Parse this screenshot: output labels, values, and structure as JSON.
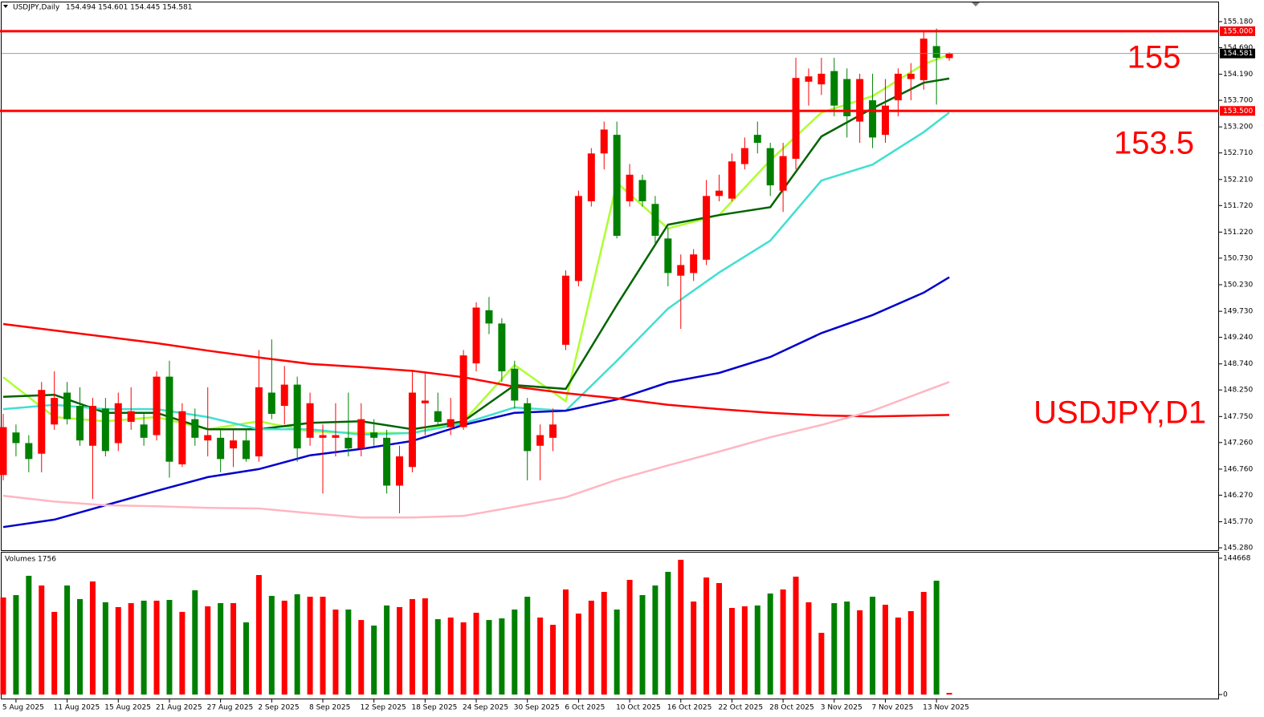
{
  "header": {
    "symbol": "USDJPY,Daily",
    "ohlc": "154.494 154.601 154.445 154.581"
  },
  "chart_data": [
    {
      "type": "candlestick",
      "categories": [
        null,
        "5 Aug 2025",
        null,
        null,
        null,
        "11 Aug 2025",
        null,
        null,
        null,
        "15 Aug 2025",
        null,
        null,
        null,
        "21 Aug 2025",
        null,
        null,
        null,
        "27 Aug 2025",
        null,
        null,
        null,
        "2 Sep 2025",
        null,
        null,
        null,
        "8 Sep 2025",
        null,
        null,
        null,
        "12 Sep 2025",
        null,
        null,
        null,
        "18 Sep 2025",
        null,
        null,
        null,
        "24 Sep 2025",
        null,
        null,
        null,
        "30 Sep 2025",
        null,
        null,
        null,
        "6 Oct 2025",
        null,
        null,
        null,
        "10 Oct 2025",
        null,
        null,
        null,
        "16 Oct 2025",
        null,
        null,
        null,
        "22 Oct 2025",
        null,
        null,
        null,
        "28 Oct 2025",
        null,
        null,
        null,
        "3 Nov 2025",
        null,
        null,
        null,
        "7 Nov 2025",
        null,
        null,
        null,
        "13 Nov 2025",
        null
      ],
      "open": [
        146.65,
        147.45,
        147.25,
        147.05,
        147.6,
        148.2,
        147.95,
        147.2,
        147.9,
        147.25,
        147.65,
        147.6,
        147.4,
        148.5,
        146.85,
        147.7,
        147.3,
        147.35,
        147.15,
        147.3,
        147.0,
        148.2,
        147.95,
        148.35,
        147.35,
        147.35,
        147.35,
        147.35,
        147.15,
        147.45,
        147.35,
        146.45,
        146.8,
        148.0,
        147.85,
        147.55,
        147.55,
        148.75,
        149.75,
        149.5,
        148.65,
        148.0,
        147.2,
        147.35,
        149.1,
        150.3,
        151.8,
        152.7,
        153.05,
        151.8,
        152.2,
        151.75,
        151.1,
        150.4,
        150.45,
        150.7,
        151.9,
        151.85,
        152.5,
        153.05,
        152.8,
        152.0,
        152.6,
        154.05,
        154.0,
        154.25,
        154.1,
        153.3,
        153.7,
        153.05,
        153.7,
        154.1,
        154.08,
        154.72,
        154.494
      ],
      "high": [
        147.8,
        147.6,
        147.4,
        148.4,
        148.6,
        148.4,
        148.3,
        148.1,
        148.1,
        148.2,
        148.3,
        147.8,
        148.6,
        148.8,
        148.0,
        147.9,
        148.3,
        147.5,
        147.5,
        147.5,
        149.0,
        149.2,
        148.7,
        148.5,
        148.2,
        147.6,
        148.0,
        148.2,
        148.0,
        147.7,
        147.5,
        147.2,
        148.6,
        148.6,
        148.2,
        148.1,
        149.0,
        149.9,
        150.0,
        149.6,
        148.8,
        148.1,
        147.6,
        147.9,
        150.5,
        152.0,
        152.8,
        153.3,
        153.3,
        152.5,
        152.3,
        151.9,
        151.3,
        150.8,
        150.9,
        152.2,
        152.3,
        152.7,
        153.0,
        153.3,
        152.9,
        152.9,
        154.5,
        154.3,
        154.5,
        154.5,
        154.3,
        154.2,
        154.2,
        154.1,
        154.3,
        154.4,
        155.0,
        155.05,
        154.601
      ],
      "low": [
        146.55,
        147.0,
        146.7,
        146.7,
        147.5,
        147.6,
        147.2,
        146.2,
        147.0,
        147.1,
        147.5,
        147.2,
        147.3,
        146.6,
        146.8,
        147.2,
        147.0,
        146.7,
        146.8,
        146.9,
        146.9,
        147.7,
        147.6,
        146.9,
        147.2,
        146.3,
        147.0,
        147.0,
        147.0,
        147.2,
        146.3,
        145.93,
        146.7,
        147.4,
        147.6,
        147.4,
        147.5,
        148.6,
        149.3,
        148.4,
        147.9,
        146.55,
        146.55,
        147.1,
        149.0,
        150.2,
        151.7,
        152.4,
        151.1,
        151.7,
        151.7,
        151.0,
        150.2,
        149.4,
        150.3,
        150.6,
        151.8,
        151.8,
        152.4,
        152.7,
        151.9,
        151.6,
        152.4,
        153.6,
        153.8,
        153.4,
        153.0,
        152.9,
        152.8,
        152.9,
        153.4,
        153.7,
        153.9,
        153.62,
        154.445
      ],
      "close": [
        147.55,
        147.25,
        146.95,
        148.25,
        148.1,
        147.7,
        147.3,
        147.95,
        147.1,
        148.0,
        147.85,
        147.35,
        148.5,
        146.9,
        147.85,
        147.35,
        147.4,
        146.95,
        147.3,
        146.95,
        148.3,
        147.8,
        148.35,
        147.15,
        148.0,
        147.4,
        147.4,
        147.15,
        147.7,
        147.35,
        146.45,
        147.0,
        148.2,
        148.05,
        147.65,
        147.7,
        148.9,
        149.8,
        149.5,
        148.6,
        148.05,
        147.1,
        147.4,
        147.6,
        150.4,
        151.9,
        152.7,
        153.15,
        151.15,
        152.3,
        151.8,
        151.15,
        150.45,
        150.6,
        150.8,
        151.9,
        152.0,
        152.55,
        152.8,
        152.9,
        152.1,
        152.65,
        154.12,
        154.15,
        154.2,
        153.6,
        153.4,
        154.1,
        153.0,
        153.6,
        154.2,
        154.2,
        154.86,
        154.5,
        154.581
      ],
      "up_color": "#ff0000",
      "down_color": "#008000",
      "ylim": [
        145.235,
        155.557
      ],
      "yticks": [
        {
          "value": 155.18,
          "label": "155.180"
        },
        {
          "value": 154.69,
          "label": "154.690"
        },
        {
          "value": 154.19,
          "label": "154.190"
        },
        {
          "value": 153.7,
          "label": "153.700"
        },
        {
          "value": 153.2,
          "label": "153.200"
        },
        {
          "value": 152.71,
          "label": "152.710"
        },
        {
          "value": 152.21,
          "label": "152.210"
        },
        {
          "value": 151.72,
          "label": "151.720"
        },
        {
          "value": 151.22,
          "label": "151.220"
        },
        {
          "value": 150.73,
          "label": "150.730"
        },
        {
          "value": 150.23,
          "label": "150.230"
        },
        {
          "value": 149.73,
          "label": "149.730"
        },
        {
          "value": 149.24,
          "label": "149.240"
        },
        {
          "value": 148.74,
          "label": "148.740"
        },
        {
          "value": 148.25,
          "label": "148.250"
        },
        {
          "value": 147.75,
          "label": "147.750"
        },
        {
          "value": 147.26,
          "label": "147.260"
        },
        {
          "value": 146.76,
          "label": "146.760"
        },
        {
          "value": 146.27,
          "label": "146.270"
        },
        {
          "value": 145.77,
          "label": "145.770"
        },
        {
          "value": 145.28,
          "label": "145.280"
        }
      ],
      "hlines": [
        {
          "value": 155,
          "label": "155.000",
          "color": "#ff0000"
        },
        {
          "value": 153.5,
          "label": "153.500",
          "color": "#ff0000"
        }
      ],
      "current_price": 154.581,
      "series": [
        {
          "color": "#adff2f",
          "x": [
            0,
            4,
            8,
            12,
            16,
            20,
            24,
            28,
            32,
            36,
            40,
            44,
            48,
            52,
            56,
            60,
            64,
            68,
            72,
            74
          ],
          "values": [
            148.49,
            147.74,
            147.66,
            147.74,
            147.51,
            147.66,
            147.47,
            147.44,
            147.44,
            147.66,
            148.72,
            148.04,
            152.15,
            151.29,
            151.54,
            152.57,
            153.47,
            153.78,
            154.38,
            154.56
          ]
        },
        {
          "color": "#006400",
          "x": [
            0,
            4,
            8,
            12,
            16,
            20,
            24,
            28,
            32,
            36,
            40,
            44,
            48,
            52,
            56,
            60,
            64,
            68,
            72,
            74
          ],
          "values": [
            148.12,
            148.16,
            147.82,
            147.82,
            147.51,
            147.51,
            147.63,
            147.66,
            147.51,
            147.66,
            148.34,
            148.27,
            149.85,
            151.36,
            151.54,
            151.69,
            153.02,
            153.55,
            154.03,
            154.11
          ]
        },
        {
          "color": "#40e0d0",
          "x": [
            0,
            4,
            8,
            12,
            16,
            20,
            24,
            28,
            32,
            36,
            40,
            44,
            48,
            52,
            56,
            60,
            64,
            68,
            72,
            74
          ],
          "values": [
            147.89,
            147.97,
            147.89,
            147.89,
            147.74,
            147.51,
            147.51,
            147.41,
            147.44,
            147.62,
            147.92,
            147.86,
            148.8,
            149.78,
            150.46,
            151.06,
            152.19,
            152.49,
            153.1,
            153.47
          ]
        },
        {
          "color": "#0000cd",
          "x": [
            0,
            4,
            8,
            12,
            16,
            20,
            24,
            28,
            32,
            36,
            40,
            44,
            48,
            52,
            56,
            60,
            64,
            68,
            72,
            74
          ],
          "values": [
            145.67,
            145.81,
            146.08,
            146.35,
            146.61,
            146.76,
            147.02,
            147.14,
            147.29,
            147.59,
            147.82,
            147.86,
            148.07,
            148.39,
            148.57,
            148.87,
            149.32,
            149.66,
            150.08,
            150.37
          ]
        },
        {
          "color": "#ff0000",
          "x": [
            0,
            4,
            8,
            12,
            16,
            20,
            24,
            28,
            32,
            36,
            40,
            44,
            48,
            52,
            56,
            60,
            64,
            68,
            72,
            74
          ],
          "values": [
            149.49,
            149.37,
            149.25,
            149.13,
            148.99,
            148.86,
            148.74,
            148.68,
            148.61,
            148.49,
            148.31,
            148.19,
            148.09,
            147.97,
            147.89,
            147.82,
            147.77,
            147.75,
            147.77,
            147.78
          ]
        },
        {
          "color": "#ffb6c1",
          "x": [
            0,
            4,
            8,
            12,
            16,
            20,
            24,
            28,
            32,
            36,
            40,
            44,
            48,
            52,
            56,
            60,
            64,
            68,
            72,
            74
          ],
          "values": [
            146.26,
            146.15,
            146.08,
            146.06,
            146.03,
            146.02,
            145.93,
            145.85,
            145.85,
            145.88,
            146.05,
            146.23,
            146.56,
            146.83,
            147.09,
            147.36,
            147.59,
            147.86,
            148.22,
            148.4
          ]
        }
      ],
      "annotations": [
        "155",
        "153.5",
        "USDJPY,D1"
      ]
    },
    {
      "type": "bar",
      "title": "Volumes 1756",
      "values": [
        103000,
        105500,
        126000,
        115700,
        87700,
        115700,
        101300,
        120000,
        97900,
        92800,
        97000,
        99600,
        99600,
        100400,
        87700,
        110600,
        93600,
        97000,
        97000,
        76600,
        126800,
        104700,
        99600,
        106400,
        103800,
        103800,
        90200,
        90200,
        79100,
        73200,
        94500,
        92800,
        101300,
        102100,
        80000,
        81700,
        76600,
        86800,
        79100,
        80800,
        90200,
        103800,
        81700,
        74000,
        111500,
        85900,
        99600,
        108900,
        90200,
        121700,
        105500,
        115700,
        130200,
        143000,
        98700,
        124200,
        118300,
        91900,
        93600,
        94500,
        107200,
        111500,
        125100,
        97900,
        65500,
        97000,
        98700,
        89400,
        103800,
        95300,
        81700,
        88500,
        108900,
        120800,
        1756
      ],
      "ylim": [
        0,
        144668
      ],
      "yticks": [
        144668,
        0
      ]
    }
  ]
}
